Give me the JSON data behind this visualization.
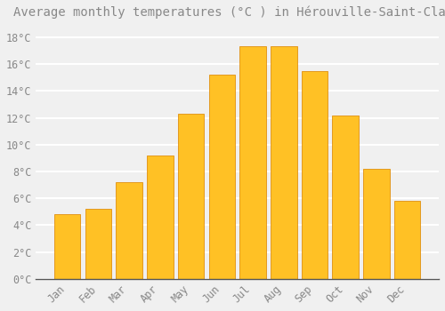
{
  "title": "Average monthly temperatures (°C ) in Hérouville-Saint-Clair",
  "months": [
    "Jan",
    "Feb",
    "Mar",
    "Apr",
    "May",
    "Jun",
    "Jul",
    "Aug",
    "Sep",
    "Oct",
    "Nov",
    "Dec"
  ],
  "values": [
    4.8,
    5.2,
    7.2,
    9.2,
    12.3,
    15.2,
    17.3,
    17.3,
    15.5,
    12.2,
    8.2,
    5.8
  ],
  "bar_color": "#FFC125",
  "bar_edge_color": "#E09010",
  "background_color": "#f0f0f0",
  "grid_color": "#ffffff",
  "text_color": "#888888",
  "ylim": [
    0,
    19
  ],
  "yticks": [
    0,
    2,
    4,
    6,
    8,
    10,
    12,
    14,
    16,
    18
  ],
  "title_fontsize": 10,
  "tick_fontsize": 8.5
}
